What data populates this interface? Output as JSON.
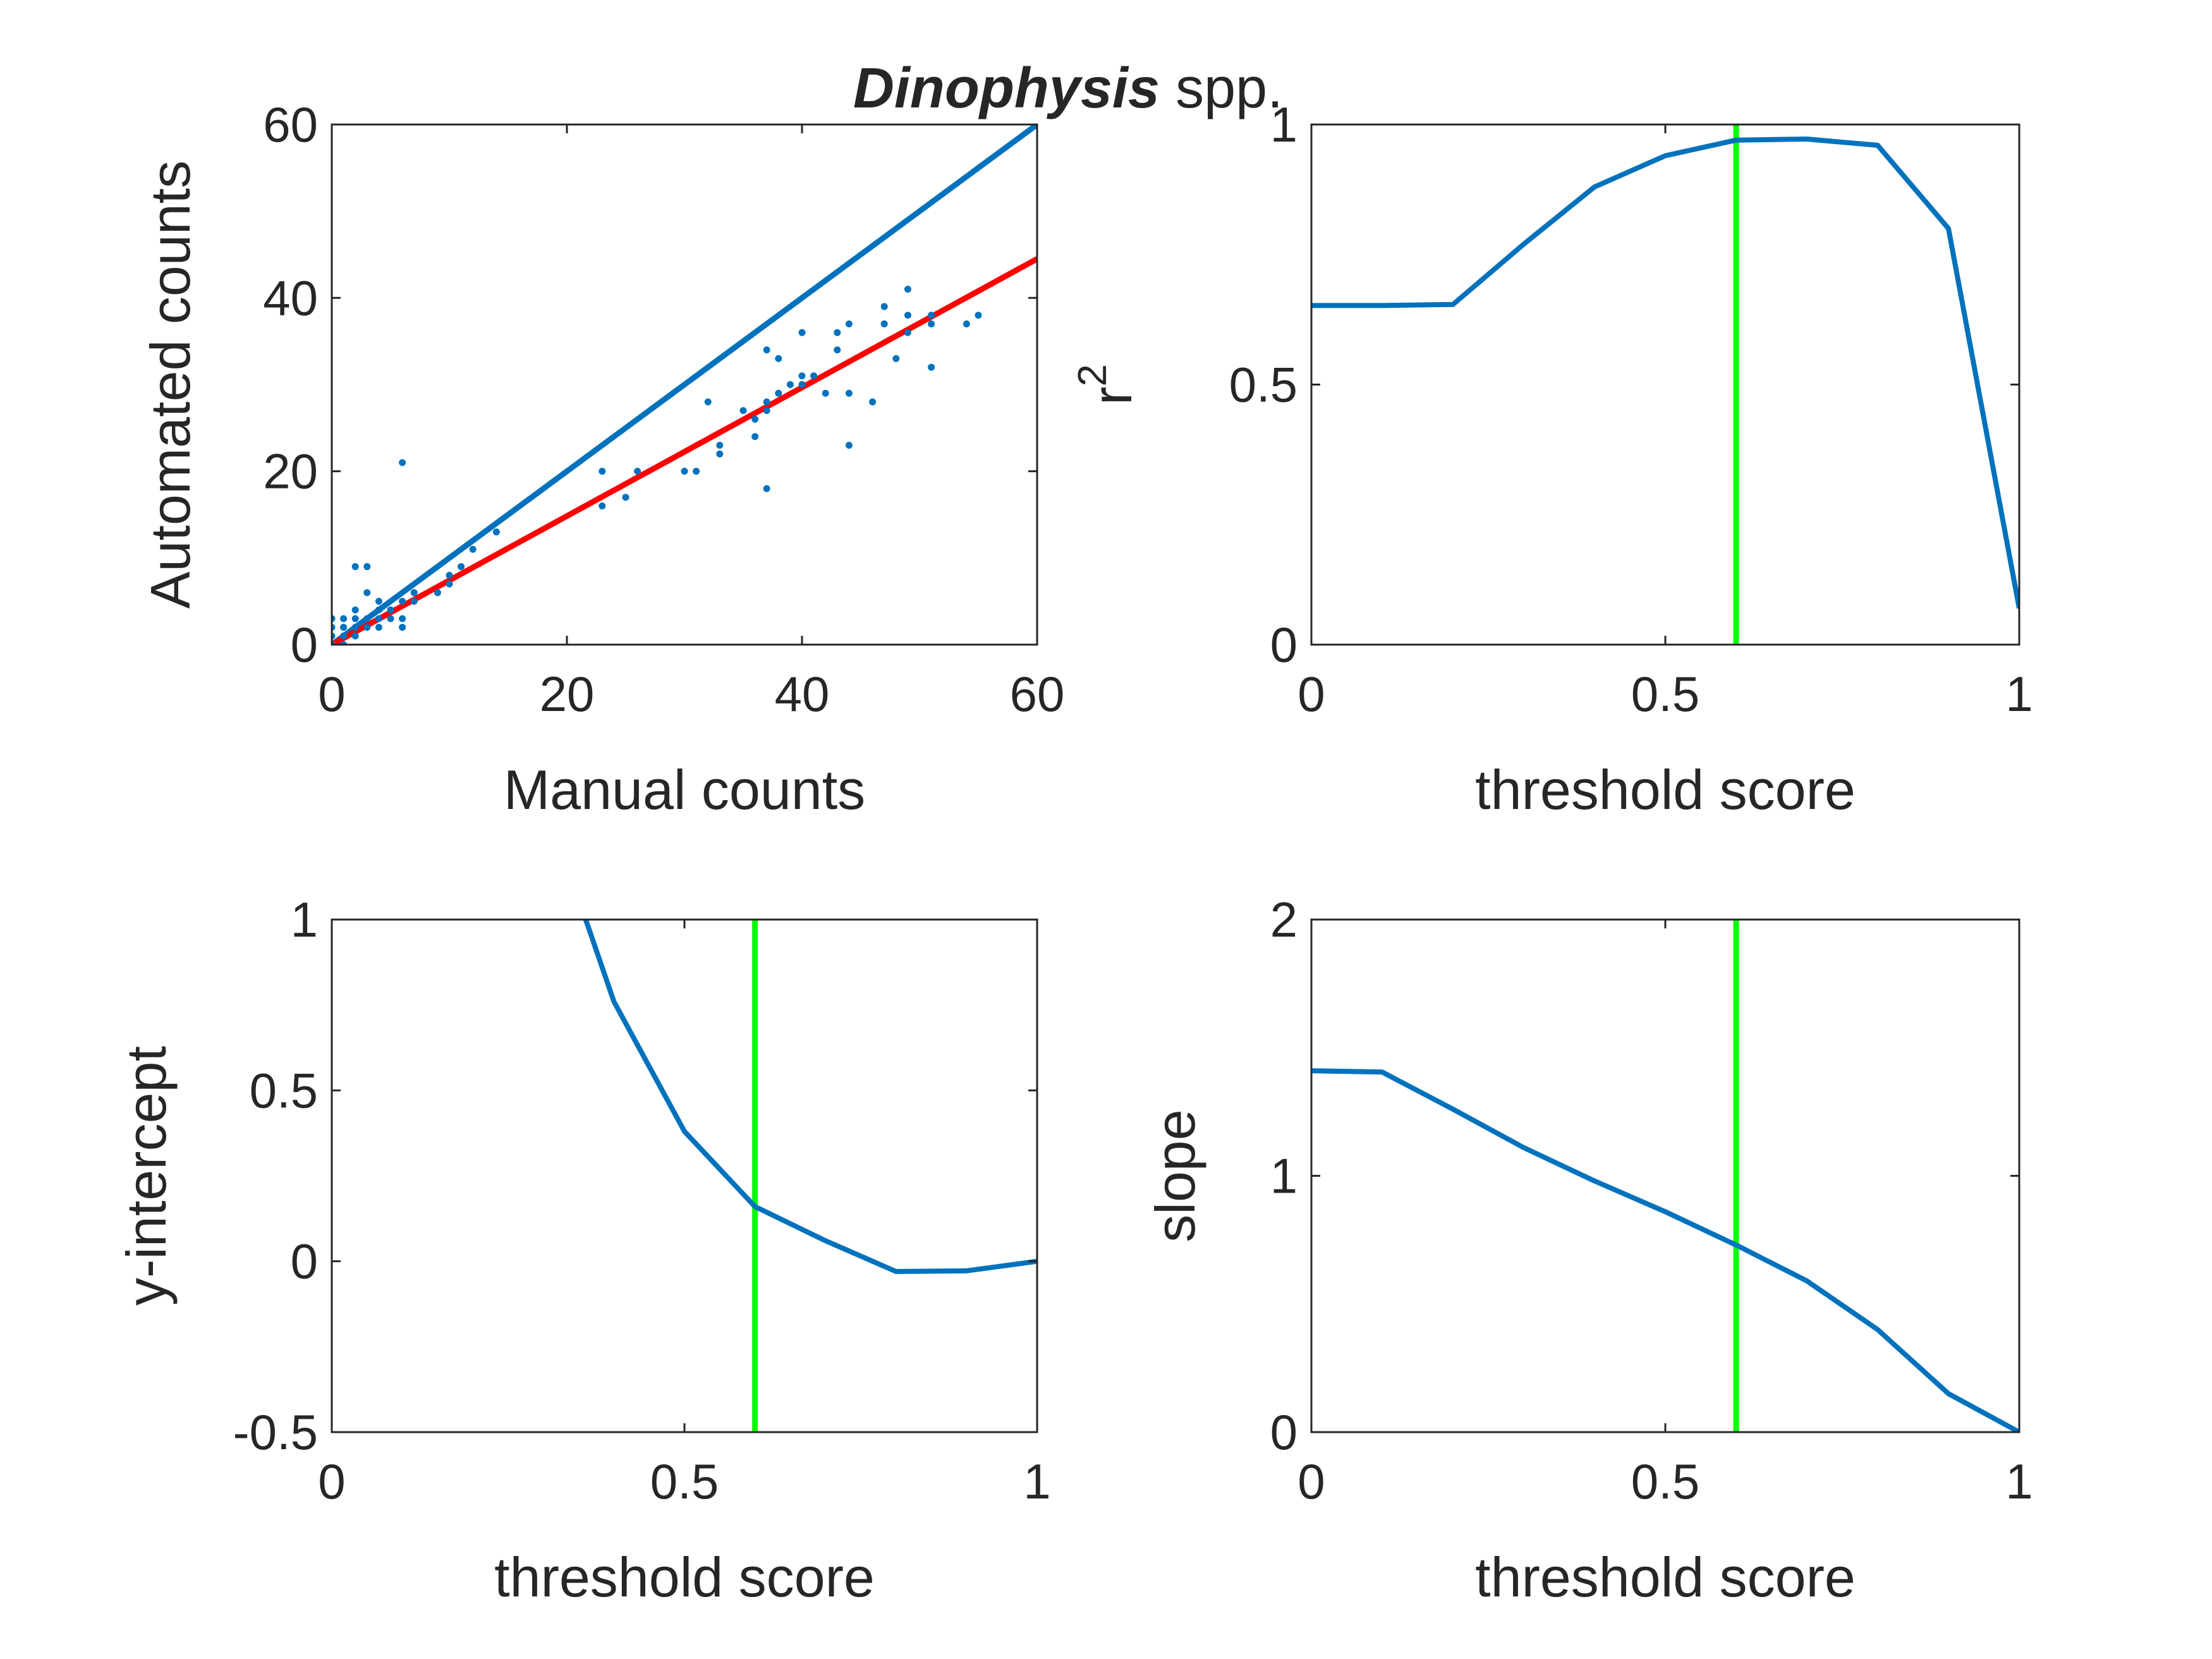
{
  "figure": {
    "title_italic": "Dinophysis",
    "title_rest": " spp."
  },
  "colors": {
    "blue": "#0072BD",
    "red": "#FF0000",
    "green": "#00FF00",
    "axis": "#262626",
    "background": "#FFFFFF"
  },
  "chart_data": [
    {
      "type": "scatter",
      "xlabel": "Manual counts",
      "ylabel": "Automated counts",
      "xlim": [
        0,
        60
      ],
      "ylim": [
        0,
        60
      ],
      "xticks": [
        0,
        20,
        40,
        60
      ],
      "yticks": [
        0,
        20,
        40,
        60
      ],
      "points": [
        [
          0,
          0
        ],
        [
          0,
          1
        ],
        [
          0,
          2
        ],
        [
          0,
          3
        ],
        [
          1,
          0
        ],
        [
          1,
          1
        ],
        [
          1,
          2
        ],
        [
          1,
          3
        ],
        [
          2,
          1
        ],
        [
          2,
          2
        ],
        [
          2,
          3
        ],
        [
          2,
          4
        ],
        [
          2,
          9
        ],
        [
          3,
          2
        ],
        [
          3,
          3
        ],
        [
          3,
          6
        ],
        [
          3,
          9
        ],
        [
          4,
          2
        ],
        [
          4,
          3
        ],
        [
          4,
          4
        ],
        [
          4,
          5
        ],
        [
          5,
          3
        ],
        [
          5,
          4
        ],
        [
          6,
          2
        ],
        [
          6,
          3
        ],
        [
          6,
          5
        ],
        [
          6,
          21
        ],
        [
          7,
          5
        ],
        [
          7,
          6
        ],
        [
          9,
          6
        ],
        [
          10,
          7
        ],
        [
          10,
          8
        ],
        [
          11,
          9
        ],
        [
          12,
          11
        ],
        [
          14,
          13
        ],
        [
          23,
          16
        ],
        [
          23,
          20
        ],
        [
          25,
          17
        ],
        [
          26,
          20
        ],
        [
          30,
          20
        ],
        [
          31,
          20
        ],
        [
          32,
          28
        ],
        [
          33,
          22
        ],
        [
          33,
          23
        ],
        [
          35,
          27
        ],
        [
          36,
          24
        ],
        [
          36,
          26
        ],
        [
          37,
          18
        ],
        [
          37,
          27
        ],
        [
          37,
          28
        ],
        [
          37,
          34
        ],
        [
          38,
          29
        ],
        [
          38,
          33
        ],
        [
          39,
          30
        ],
        [
          40,
          30
        ],
        [
          40,
          31
        ],
        [
          40,
          36
        ],
        [
          41,
          31
        ],
        [
          42,
          29
        ],
        [
          43,
          34
        ],
        [
          43,
          36
        ],
        [
          44,
          23
        ],
        [
          44,
          29
        ],
        [
          44,
          37
        ],
        [
          46,
          28
        ],
        [
          47,
          37
        ],
        [
          47,
          39
        ],
        [
          48,
          33
        ],
        [
          49,
          36
        ],
        [
          49,
          38
        ],
        [
          49,
          41
        ],
        [
          51,
          32
        ],
        [
          51,
          37
        ],
        [
          51,
          38
        ],
        [
          54,
          37
        ],
        [
          55,
          38
        ]
      ],
      "lines": [
        {
          "color": "blue",
          "x": [
            0,
            60
          ],
          "y": [
            0,
            60
          ]
        },
        {
          "color": "red",
          "x": [
            0,
            60
          ],
          "y": [
            0,
            44.5
          ]
        }
      ]
    },
    {
      "type": "line",
      "xlabel": "threshold score",
      "ylabel_base": "r",
      "ylabel_sup": "2",
      "xlim": [
        0,
        1
      ],
      "ylim": [
        0,
        1
      ],
      "xticks": [
        0,
        0.5,
        1
      ],
      "yticks": [
        0,
        0.5,
        1
      ],
      "series": [
        {
          "color": "blue",
          "x": [
            0,
            0.1,
            0.2,
            0.3,
            0.4,
            0.5,
            0.6,
            0.7,
            0.8,
            0.9,
            1.0
          ],
          "y": [
            0.652,
            0.652,
            0.654,
            0.77,
            0.88,
            0.94,
            0.97,
            0.972,
            0.96,
            0.8,
            0.07
          ]
        }
      ],
      "vline": {
        "x": 0.6,
        "color": "green"
      }
    },
    {
      "type": "line",
      "xlabel": "threshold score",
      "ylabel": "y-intercept",
      "xlim": [
        0,
        1
      ],
      "ylim": [
        -0.5,
        1
      ],
      "xticks": [
        0,
        0.5,
        1
      ],
      "yticks": [
        -0.5,
        0,
        0.5,
        1
      ],
      "series": [
        {
          "color": "blue",
          "x": [
            0.36,
            0.4,
            0.5,
            0.6,
            0.7,
            0.8,
            0.9,
            1.0
          ],
          "y": [
            1.0,
            0.76,
            0.38,
            0.16,
            0.06,
            -0.03,
            -0.028,
            0
          ]
        }
      ],
      "vline": {
        "x": 0.6,
        "color": "green"
      }
    },
    {
      "type": "line",
      "xlabel": "threshold score",
      "ylabel": "slope",
      "xlim": [
        0,
        1
      ],
      "ylim": [
        0,
        2
      ],
      "xticks": [
        0,
        0.5,
        1
      ],
      "yticks": [
        0,
        1,
        2
      ],
      "series": [
        {
          "color": "blue",
          "x": [
            0,
            0.1,
            0.2,
            0.3,
            0.4,
            0.5,
            0.6,
            0.7,
            0.8,
            0.9,
            1.0
          ],
          "y": [
            1.41,
            1.405,
            1.26,
            1.11,
            0.98,
            0.86,
            0.73,
            0.59,
            0.4,
            0.15,
            0.0
          ]
        }
      ],
      "vline": {
        "x": 0.6,
        "color": "green"
      }
    }
  ]
}
